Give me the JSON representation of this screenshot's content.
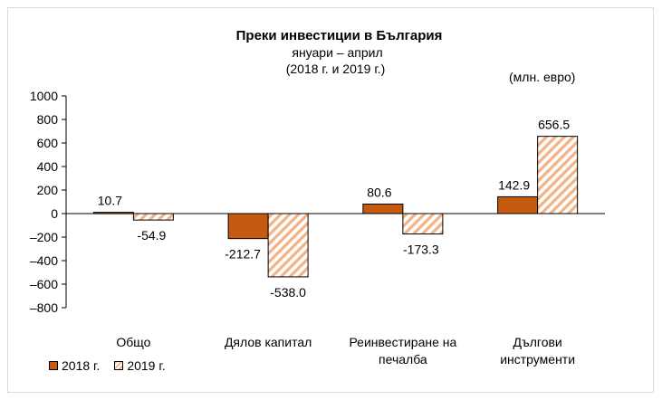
{
  "title": "Преки  инвестиции в България",
  "subtitle": "януари – април",
  "subtitle2": "(2018 г. и 2019 г.)",
  "units": "(млн. евро)",
  "colors": {
    "series2018": "#c55a11",
    "series2019_stripe": "#f4b183",
    "axis": "#000000",
    "gridline": "#000000"
  },
  "legend": {
    "series2018": "2018 г.",
    "series2019": "2019 г."
  },
  "chart_data": {
    "type": "bar",
    "title": "Преки  инвестиции в България",
    "ylabel": "(млн. евро)",
    "xlabel": "",
    "ylim": [
      -800,
      1000
    ],
    "yticks": [
      1000,
      800,
      600,
      400,
      200,
      0,
      -200,
      -400,
      -600,
      -800
    ],
    "ytick_labels": [
      "1000",
      "800",
      "600",
      "400",
      "200",
      "0",
      "–200",
      "–400",
      "–600",
      "–800"
    ],
    "categories": [
      [
        "Общо"
      ],
      [
        "Дялов капитал"
      ],
      [
        "Реинвестиране на",
        "печалба"
      ],
      [
        "Дългови",
        "инструменти"
      ]
    ],
    "series": [
      {
        "name": "2018 г.",
        "values": [
          10.7,
          -212.7,
          80.6,
          142.9
        ],
        "labels": [
          "10.7",
          "-212.7",
          "80.6",
          "142.9"
        ]
      },
      {
        "name": "2019 г.",
        "values": [
          -54.9,
          -538.0,
          -173.3,
          656.5
        ],
        "labels": [
          "-54.9",
          "-538.0",
          "-173.3",
          "656.5"
        ]
      }
    ]
  }
}
